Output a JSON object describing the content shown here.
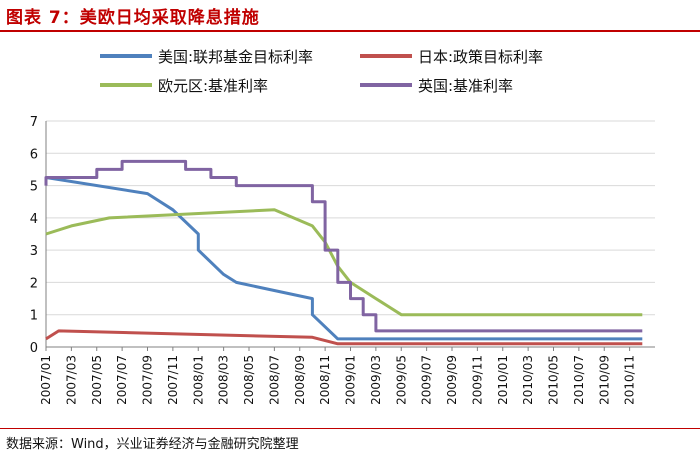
{
  "header": {
    "title": "图表 7：美欧日均采取降息措施"
  },
  "source": {
    "text": "数据来源：Wind，兴业证券经济与金融研究院整理"
  },
  "chart_data": {
    "type": "line",
    "xlabel": "",
    "ylabel": "",
    "ylim": [
      0,
      7
    ],
    "yticks": [
      0,
      1,
      2,
      3,
      4,
      5,
      6,
      7
    ],
    "x_start": "2007/01",
    "x_end": "2010/12",
    "xtick_labels": [
      "2007/01",
      "2007/03",
      "2007/05",
      "2007/07",
      "2007/09",
      "2007/11",
      "2008/01",
      "2008/03",
      "2008/05",
      "2008/07",
      "2008/09",
      "2008/11",
      "2009/01",
      "2009/03",
      "2009/05",
      "2009/07",
      "2009/09",
      "2009/11",
      "2010/01",
      "2010/03",
      "2010/05",
      "2010/07",
      "2010/09",
      "2010/11"
    ],
    "grid": true,
    "legend_position": "top",
    "series": [
      {
        "name": "美国:联邦基金目标利率",
        "color": "#4f81bd",
        "points": [
          [
            "2007/01",
            5.25
          ],
          [
            "2007/09",
            4.75
          ],
          [
            "2007/11",
            4.25
          ],
          [
            "2008/01",
            3.5
          ],
          [
            "2008/01",
            3.0
          ],
          [
            "2008/03",
            2.25
          ],
          [
            "2008/04",
            2.0
          ],
          [
            "2008/10",
            1.5
          ],
          [
            "2008/10",
            1.0
          ],
          [
            "2008/12",
            0.25
          ],
          [
            "2010/12",
            0.25
          ]
        ]
      },
      {
        "name": "日本:政策目标利率",
        "color": "#c0504d",
        "points": [
          [
            "2007/01",
            0.25
          ],
          [
            "2007/02",
            0.5
          ],
          [
            "2008/10",
            0.3
          ],
          [
            "2008/12",
            0.1
          ],
          [
            "2010/12",
            0.1
          ]
        ]
      },
      {
        "name": "欧元区:基准利率",
        "color": "#9bbb59",
        "points": [
          [
            "2007/01",
            3.5
          ],
          [
            "2007/03",
            3.75
          ],
          [
            "2007/06",
            4.0
          ],
          [
            "2008/07",
            4.25
          ],
          [
            "2008/10",
            3.75
          ],
          [
            "2008/11",
            3.25
          ],
          [
            "2008/12",
            2.5
          ],
          [
            "2009/01",
            2.0
          ],
          [
            "2009/03",
            1.5
          ],
          [
            "2009/04",
            1.25
          ],
          [
            "2009/05",
            1.0
          ],
          [
            "2010/12",
            1.0
          ]
        ]
      },
      {
        "name": "英国:基准利率",
        "color": "#8064a2",
        "points": [
          [
            "2007/01",
            5.0
          ],
          [
            "2007/01",
            5.25
          ],
          [
            "2007/05",
            5.25
          ],
          [
            "2007/05",
            5.5
          ],
          [
            "2007/07",
            5.5
          ],
          [
            "2007/07",
            5.75
          ],
          [
            "2007/12",
            5.75
          ],
          [
            "2007/12",
            5.5
          ],
          [
            "2008/02",
            5.5
          ],
          [
            "2008/02",
            5.25
          ],
          [
            "2008/04",
            5.25
          ],
          [
            "2008/04",
            5.0
          ],
          [
            "2008/10",
            5.0
          ],
          [
            "2008/10",
            4.5
          ],
          [
            "2008/11",
            4.5
          ],
          [
            "2008/11",
            3.0
          ],
          [
            "2008/12",
            3.0
          ],
          [
            "2008/12",
            2.0
          ],
          [
            "2009/01",
            2.0
          ],
          [
            "2009/01",
            1.5
          ],
          [
            "2009/02",
            1.5
          ],
          [
            "2009/02",
            1.0
          ],
          [
            "2009/03",
            1.0
          ],
          [
            "2009/03",
            0.5
          ],
          [
            "2010/12",
            0.5
          ]
        ]
      }
    ]
  }
}
